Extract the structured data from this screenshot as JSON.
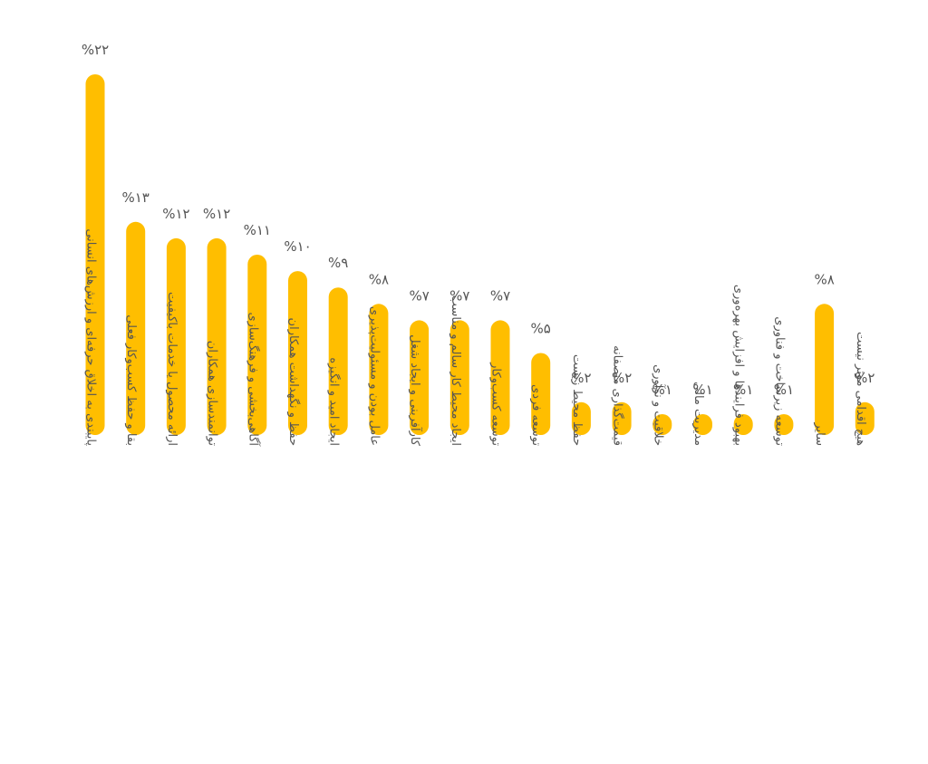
{
  "colors": {
    "bar": "#FFBE00",
    "label": "#555555",
    "value": "#555555",
    "background": "#ffffff"
  },
  "chart_data": {
    "type": "bar",
    "title": "",
    "xlabel": "",
    "ylabel": "",
    "ylim": [
      0,
      22
    ],
    "grid": false,
    "legend": "none",
    "categories": [
      "پایبندی به اخلاق حرفه‌ای و ارزش‌های انسانی",
      "بقا و حفظ کسب‌وکار فعلی",
      "ارائه محصول یا خدمات باکیفیت",
      "توانمندسازی همکاران",
      "آگاهی‌بخشی و فرهنگ‌سازی",
      "حفظ و نگهداشت همکاران",
      "ایجاد امید و انگیزه",
      "عامل بودن و مسئولیت‌پذیری",
      "کارآفرینی و ایجاد شغل",
      "ایجاد محیط کار سالم و مناسب",
      "توسعه کسب‌وکار",
      "توسعه فردی",
      "حفظ محیط زیست",
      "قیمت‌گذاری منصفانه",
      "خلاقیت و نوآوری",
      "مدیریت مالی",
      "بهبود فرایندها و افزایش بهره‌وری",
      "توسعه زیرساخت و فناوری",
      "سایر",
      "هیچ اقدامی موثر نیست"
    ],
    "values": [
      22,
      13,
      12,
      12,
      11,
      10,
      9,
      8,
      7,
      7,
      7,
      5,
      2,
      2,
      1,
      1,
      1,
      1,
      8,
      2
    ],
    "value_labels": [
      "%۲۲",
      "%۱۳",
      "%۱۲",
      "%۱۲",
      "%۱۱",
      "%۱۰",
      "%۹",
      "%۸",
      "%۷",
      "%۷",
      "%۷",
      "%۵",
      "%۲",
      "%۲",
      "%۱",
      "%۱",
      "%۱",
      "%۱",
      "%۸",
      "%۲"
    ]
  }
}
